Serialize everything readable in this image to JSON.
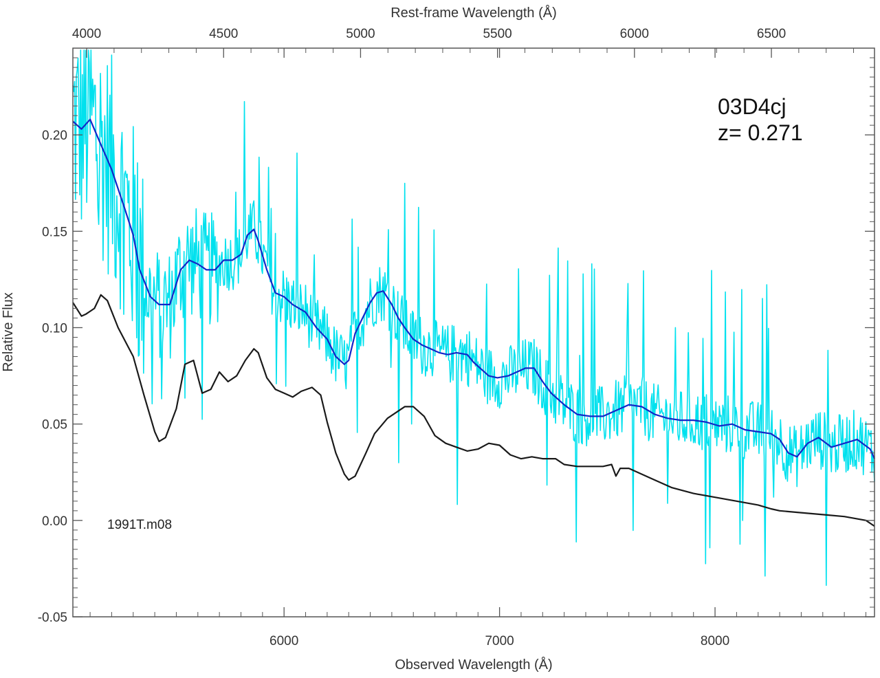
{
  "chart_data": {
    "type": "line",
    "title": "",
    "xlabel": "Observed Wavelength (Å)",
    "x2label": "Rest-frame Wavelength (Å)",
    "ylabel": "Relative Flux",
    "xlim": [
      5020,
      8740
    ],
    "ylim": [
      -0.05,
      0.245
    ],
    "redshift": 0.271,
    "xticks": [
      6000,
      7000,
      8000
    ],
    "x2ticks": [
      4000,
      4500,
      5000,
      5500,
      6000,
      6500
    ],
    "yticks": [
      -0.05,
      0.0,
      0.05,
      0.1,
      0.15,
      0.2
    ],
    "yticklabels": [
      "-0.05",
      "0.00",
      "0.05",
      "0.10",
      "0.15",
      "0.20"
    ],
    "grid": false,
    "annotations": {
      "object_name": "03D4cj",
      "redshift_text": "z= 0.271",
      "template_name": "1991T.m08"
    },
    "series": [
      {
        "color": "#00e1ee",
        "style": "noisy",
        "x": [
          5020,
          5060,
          5100,
          5150,
          5200,
          5260,
          5300,
          5330,
          5380,
          5420,
          5470,
          5520,
          5560,
          5600,
          5640,
          5680,
          5720,
          5760,
          5800,
          5830,
          5860,
          5880,
          5920,
          5960,
          6000,
          6040,
          6100,
          6150,
          6200,
          6240,
          6280,
          6300,
          6330,
          6360,
          6400,
          6430,
          6460,
          6500,
          6530,
          6560,
          6600,
          6640,
          6680,
          6720,
          6760,
          6800,
          6850,
          6880,
          6920,
          6950,
          6990,
          7040,
          7080,
          7120,
          7160,
          7200,
          7240,
          7300,
          7360,
          7420,
          7480,
          7540,
          7600,
          7660,
          7720,
          7780,
          7840,
          7900,
          7960,
          8020,
          8080,
          8140,
          8200,
          8260,
          8300,
          8340,
          8380,
          8430,
          8480,
          8540,
          8600,
          8660,
          8720,
          8740
        ],
        "y": [
          0.207,
          0.203,
          0.208,
          0.195,
          0.182,
          0.162,
          0.148,
          0.13,
          0.116,
          0.112,
          0.112,
          0.13,
          0.135,
          0.133,
          0.13,
          0.13,
          0.135,
          0.135,
          0.138,
          0.148,
          0.151,
          0.145,
          0.13,
          0.118,
          0.116,
          0.112,
          0.108,
          0.1,
          0.094,
          0.085,
          0.081,
          0.083,
          0.097,
          0.104,
          0.113,
          0.118,
          0.119,
          0.112,
          0.105,
          0.1,
          0.094,
          0.091,
          0.089,
          0.087,
          0.086,
          0.087,
          0.086,
          0.082,
          0.078,
          0.075,
          0.074,
          0.075,
          0.077,
          0.079,
          0.079,
          0.072,
          0.066,
          0.06,
          0.055,
          0.054,
          0.054,
          0.057,
          0.06,
          0.059,
          0.055,
          0.053,
          0.052,
          0.052,
          0.051,
          0.049,
          0.05,
          0.047,
          0.046,
          0.045,
          0.042,
          0.035,
          0.033,
          0.04,
          0.043,
          0.038,
          0.04,
          0.042,
          0.037,
          0.032
        ]
      },
      {
        "color": "#1226c8",
        "style": "smooth",
        "x": [
          5020,
          5060,
          5100,
          5150,
          5200,
          5260,
          5300,
          5330,
          5380,
          5420,
          5470,
          5520,
          5560,
          5600,
          5640,
          5680,
          5720,
          5760,
          5800,
          5830,
          5860,
          5880,
          5920,
          5960,
          6000,
          6040,
          6100,
          6150,
          6200,
          6240,
          6280,
          6300,
          6330,
          6360,
          6400,
          6430,
          6460,
          6500,
          6530,
          6560,
          6600,
          6640,
          6680,
          6720,
          6760,
          6800,
          6850,
          6880,
          6920,
          6950,
          6990,
          7040,
          7080,
          7120,
          7160,
          7200,
          7240,
          7300,
          7360,
          7420,
          7480,
          7540,
          7600,
          7660,
          7720,
          7780,
          7840,
          7900,
          7960,
          8020,
          8080,
          8140,
          8200,
          8260,
          8300,
          8340,
          8380,
          8430,
          8480,
          8540,
          8600,
          8660,
          8720,
          8740
        ],
        "y": [
          0.207,
          0.203,
          0.208,
          0.195,
          0.182,
          0.162,
          0.148,
          0.13,
          0.116,
          0.112,
          0.112,
          0.13,
          0.135,
          0.133,
          0.13,
          0.13,
          0.135,
          0.135,
          0.138,
          0.148,
          0.151,
          0.145,
          0.13,
          0.118,
          0.116,
          0.112,
          0.108,
          0.1,
          0.094,
          0.085,
          0.081,
          0.083,
          0.097,
          0.104,
          0.113,
          0.118,
          0.119,
          0.112,
          0.105,
          0.1,
          0.094,
          0.091,
          0.089,
          0.087,
          0.086,
          0.087,
          0.086,
          0.082,
          0.078,
          0.075,
          0.074,
          0.075,
          0.077,
          0.079,
          0.079,
          0.072,
          0.066,
          0.06,
          0.055,
          0.054,
          0.054,
          0.057,
          0.06,
          0.059,
          0.055,
          0.053,
          0.052,
          0.052,
          0.051,
          0.049,
          0.05,
          0.047,
          0.046,
          0.045,
          0.042,
          0.035,
          0.033,
          0.04,
          0.043,
          0.038,
          0.04,
          0.042,
          0.037,
          0.032
        ]
      },
      {
        "name": "1991T.m08",
        "color": "#1a1a1a",
        "style": "smooth",
        "x": [
          5020,
          5060,
          5080,
          5120,
          5150,
          5180,
          5230,
          5300,
          5350,
          5400,
          5420,
          5450,
          5500,
          5540,
          5580,
          5620,
          5660,
          5700,
          5740,
          5780,
          5820,
          5860,
          5880,
          5920,
          5960,
          6000,
          6040,
          6080,
          6130,
          6170,
          6200,
          6240,
          6280,
          6300,
          6330,
          6380,
          6420,
          6480,
          6560,
          6600,
          6650,
          6700,
          6750,
          6800,
          6850,
          6900,
          6950,
          7000,
          7050,
          7100,
          7150,
          7200,
          7260,
          7300,
          7360,
          7420,
          7480,
          7520,
          7540,
          7560,
          7600,
          7700,
          7800,
          7900,
          8000,
          8100,
          8200,
          8260,
          8300,
          8400,
          8500,
          8600,
          8700,
          8740
        ],
        "y": [
          0.113,
          0.106,
          0.107,
          0.11,
          0.117,
          0.114,
          0.1,
          0.085,
          0.065,
          0.046,
          0.041,
          0.043,
          0.058,
          0.081,
          0.083,
          0.066,
          0.068,
          0.077,
          0.072,
          0.075,
          0.083,
          0.089,
          0.087,
          0.074,
          0.068,
          0.066,
          0.064,
          0.067,
          0.069,
          0.065,
          0.051,
          0.035,
          0.024,
          0.021,
          0.023,
          0.035,
          0.045,
          0.053,
          0.059,
          0.059,
          0.054,
          0.044,
          0.04,
          0.038,
          0.036,
          0.037,
          0.04,
          0.039,
          0.034,
          0.032,
          0.033,
          0.032,
          0.032,
          0.029,
          0.028,
          0.028,
          0.028,
          0.029,
          0.023,
          0.027,
          0.027,
          0.022,
          0.017,
          0.014,
          0.012,
          0.01,
          0.008,
          0.006,
          0.005,
          0.004,
          0.003,
          0.002,
          0.0,
          -0.003
        ]
      }
    ]
  }
}
